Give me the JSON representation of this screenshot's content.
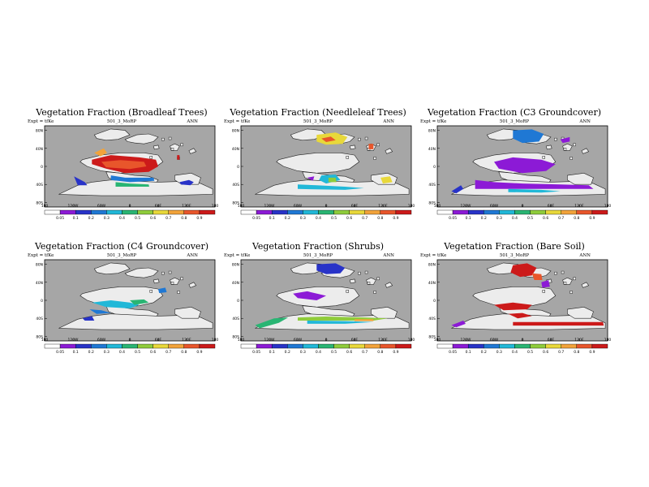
{
  "colors": {
    "ocean": "#a6a6a6",
    "land": "#ececec",
    "scale": [
      "#ffffff",
      "#8c1ad6",
      "#2833c8",
      "#1f78d4",
      "#21b8d8",
      "#29b573",
      "#8fcc3b",
      "#e8d83a",
      "#f2a33a",
      "#e8562b",
      "#cc1a1a"
    ]
  },
  "panels": [
    {
      "title": "Vegetation Fraction (Broadleaf Trees)",
      "left": "Expt = tfKe",
      "center": "501_3_MoRP",
      "right": "ANN",
      "ylabels": [
        "80N",
        "40N",
        "0",
        "40S",
        "80S"
      ],
      "xlabels": [
        "180",
        "120W",
        "60W",
        "0",
        "60E",
        "120E",
        "180"
      ],
      "cbar_labels": [
        "0.05",
        "0.1",
        "0.2",
        "0.3",
        "0.4",
        "0.5",
        "0.6",
        "0.7",
        "0.8",
        "0.9"
      ],
      "patches": [
        {
          "c": 10,
          "pts": [
            [
              -80,
              15
            ],
            [
              -40,
              25
            ],
            [
              20,
              20
            ],
            [
              55,
              15
            ],
            [
              60,
              0
            ],
            [
              40,
              -12
            ],
            [
              -10,
              -15
            ],
            [
              -50,
              -5
            ],
            [
              -80,
              5
            ]
          ]
        },
        {
          "c": 9,
          "pts": [
            [
              -60,
              10
            ],
            [
              -20,
              14
            ],
            [
              30,
              10
            ],
            [
              35,
              0
            ],
            [
              0,
              -6
            ],
            [
              -50,
              -2
            ]
          ]
        },
        {
          "c": 8,
          "pts": [
            [
              -75,
              30
            ],
            [
              -55,
              40
            ],
            [
              -48,
              30
            ],
            [
              -62,
              22
            ]
          ]
        },
        {
          "c": 3,
          "pts": [
            [
              -40,
              -20
            ],
            [
              -10,
              -25
            ],
            [
              50,
              -25
            ],
            [
              52,
              -32
            ],
            [
              0,
              -35
            ],
            [
              -40,
              -30
            ]
          ]
        },
        {
          "c": 5,
          "pts": [
            [
              -30,
              -35
            ],
            [
              0,
              -38
            ],
            [
              40,
              -40
            ],
            [
              41,
              -45
            ],
            [
              -30,
              -45
            ]
          ]
        },
        {
          "c": 2,
          "pts": [
            [
              105,
              -35
            ],
            [
              125,
              -30
            ],
            [
              135,
              -35
            ],
            [
              128,
              -42
            ],
            [
              108,
              -40
            ]
          ]
        },
        {
          "c": 10,
          "pts": [
            [
              100,
              25
            ],
            [
              105,
              25
            ],
            [
              105,
              15
            ],
            [
              100,
              15
            ]
          ]
        },
        {
          "c": 2,
          "pts": [
            [
              -118,
              -22
            ],
            [
              -95,
              -35
            ],
            [
              -90,
              -42
            ],
            [
              -110,
              -42
            ]
          ]
        }
      ]
    },
    {
      "title": "Vegetation Fraction (Needleleaf Trees)",
      "left": "Expt = tfKe",
      "center": "501_3_MoRP",
      "right": "ANN",
      "ylabels": [
        "80N",
        "40N",
        "0",
        "40S",
        "80S"
      ],
      "xlabels": [
        "180",
        "120W",
        "60W",
        "0",
        "60E",
        "120E",
        "180"
      ],
      "cbar_labels": [
        "0.05",
        "0.1",
        "0.2",
        "0.3",
        "0.4",
        "0.5",
        "0.6",
        "0.7",
        "0.8",
        "0.9"
      ],
      "patches": [
        {
          "c": 7,
          "pts": [
            [
              -20,
              70
            ],
            [
              20,
              75
            ],
            [
              45,
              65
            ],
            [
              35,
              50
            ],
            [
              0,
              48
            ],
            [
              -20,
              55
            ]
          ]
        },
        {
          "c": 9,
          "pts": [
            [
              -10,
              62
            ],
            [
              10,
              66
            ],
            [
              20,
              58
            ],
            [
              0,
              54
            ]
          ]
        },
        {
          "c": 9,
          "pts": [
            [
              90,
              50
            ],
            [
              100,
              50
            ],
            [
              100,
              38
            ],
            [
              90,
              38
            ]
          ]
        },
        {
          "c": 4,
          "pts": [
            [
              -10,
              -20
            ],
            [
              20,
              -18
            ],
            [
              30,
              -30
            ],
            [
              0,
              -38
            ],
            [
              -15,
              -30
            ]
          ]
        },
        {
          "c": 6,
          "pts": [
            [
              5,
              -25
            ],
            [
              20,
              -25
            ],
            [
              22,
              -35
            ],
            [
              5,
              -35
            ]
          ]
        },
        {
          "c": 7,
          "pts": [
            [
              115,
              -25
            ],
            [
              135,
              -22
            ],
            [
              140,
              -35
            ],
            [
              120,
              -38
            ]
          ]
        },
        {
          "c": 4,
          "pts": [
            [
              -60,
              -40
            ],
            [
              -20,
              -42
            ],
            [
              40,
              -45
            ],
            [
              80,
              -48
            ],
            [
              40,
              -52
            ],
            [
              -60,
              -50
            ]
          ]
        },
        {
          "c": 1,
          "pts": [
            [
              -40,
              -25
            ],
            [
              -25,
              -22
            ],
            [
              -28,
              -32
            ]
          ]
        }
      ]
    },
    {
      "title": "Vegetation Fraction (C3 Groundcover)",
      "left": "Expt = tfKe",
      "center": "501_3_MoRP",
      "right": "ANN",
      "ylabels": [
        "80N",
        "40N",
        "0",
        "40S",
        "80S"
      ],
      "xlabels": [
        "180",
        "120W",
        "60W",
        "0",
        "60E",
        "120E",
        "180"
      ],
      "cbar_labels": [
        "0.05",
        "0.1",
        "0.2",
        "0.3",
        "0.4",
        "0.5",
        "0.6",
        "0.7",
        "0.8",
        "0.9"
      ],
      "patches": [
        {
          "c": 3,
          "pts": [
            [
              -20,
              80
            ],
            [
              20,
              82
            ],
            [
              45,
              72
            ],
            [
              35,
              55
            ],
            [
              0,
              52
            ],
            [
              -20,
              62
            ]
          ]
        },
        {
          "c": 1,
          "pts": [
            [
              -60,
              10
            ],
            [
              -20,
              20
            ],
            [
              40,
              15
            ],
            [
              70,
              5
            ],
            [
              50,
              -10
            ],
            [
              0,
              -15
            ],
            [
              -50,
              -5
            ]
          ]
        },
        {
          "c": 1,
          "pts": [
            [
              -100,
              -30
            ],
            [
              -60,
              -35
            ],
            [
              0,
              -38
            ],
            [
              80,
              -40
            ],
            [
              140,
              -42
            ],
            [
              150,
              -50
            ],
            [
              -100,
              -50
            ]
          ]
        },
        {
          "c": 2,
          "pts": [
            [
              -150,
              -55
            ],
            [
              -130,
              -42
            ],
            [
              -125,
              -50
            ],
            [
              -140,
              -60
            ]
          ]
        },
        {
          "c": 4,
          "pts": [
            [
              -30,
              -50
            ],
            [
              40,
              -52
            ],
            [
              80,
              -55
            ],
            [
              40,
              -58
            ],
            [
              -30,
              -57
            ]
          ]
        },
        {
          "c": 1,
          "pts": [
            [
              80,
              60
            ],
            [
              100,
              65
            ],
            [
              100,
              55
            ],
            [
              85,
              52
            ]
          ]
        }
      ]
    },
    {
      "title": "Vegetation Fraction (C4 Groundcover)",
      "left": "Expt = tfKe",
      "center": "501_3_MoRP",
      "right": "ANN",
      "ylabels": [
        "80N",
        "40N",
        "0",
        "40S",
        "80S"
      ],
      "xlabels": [
        "180",
        "120W",
        "60W",
        "0",
        "60E",
        "120E",
        "180"
      ],
      "cbar_labels": [
        "0.05",
        "0.1",
        "0.2",
        "0.3",
        "0.4",
        "0.5",
        "0.6",
        "0.7",
        "0.8",
        "0.9"
      ],
      "patches": [
        {
          "c": 4,
          "pts": [
            [
              -80,
              -5
            ],
            [
              -40,
              0
            ],
            [
              0,
              -5
            ],
            [
              20,
              -10
            ],
            [
              0,
              -18
            ],
            [
              -50,
              -15
            ]
          ]
        },
        {
          "c": 3,
          "pts": [
            [
              -85,
              -20
            ],
            [
              -60,
              -22
            ],
            [
              -40,
              -28
            ],
            [
              -70,
              -30
            ]
          ]
        },
        {
          "c": 5,
          "pts": [
            [
              0,
              0
            ],
            [
              30,
              2
            ],
            [
              40,
              -5
            ],
            [
              10,
              -10
            ]
          ]
        },
        {
          "c": 2,
          "pts": [
            [
              -100,
              -40
            ],
            [
              -80,
              -35
            ],
            [
              -75,
              -45
            ],
            [
              -95,
              -45
            ]
          ]
        },
        {
          "c": 3,
          "pts": [
            [
              60,
              25
            ],
            [
              75,
              28
            ],
            [
              78,
              18
            ],
            [
              62,
              16
            ]
          ]
        }
      ]
    },
    {
      "title": "Vegetation Fraction (Shrubs)",
      "left": "Expt = tfKe",
      "center": "501_3_MoRP",
      "right": "ANN",
      "ylabels": [
        "80N",
        "40N",
        "0",
        "40S",
        "80S"
      ],
      "xlabels": [
        "180",
        "120W",
        "60W",
        "0",
        "60E",
        "120E",
        "180"
      ],
      "cbar_labels": [
        "0.05",
        "0.1",
        "0.2",
        "0.3",
        "0.4",
        "0.5",
        "0.6",
        "0.7",
        "0.8",
        "0.9"
      ],
      "patches": [
        {
          "c": 2,
          "pts": [
            [
              -20,
              80
            ],
            [
              20,
              82
            ],
            [
              40,
              72
            ],
            [
              30,
              60
            ],
            [
              0,
              58
            ],
            [
              -20,
              66
            ]
          ]
        },
        {
          "c": 1,
          "pts": [
            [
              -70,
              15
            ],
            [
              -40,
              20
            ],
            [
              0,
              10
            ],
            [
              -20,
              0
            ],
            [
              -60,
              5
            ]
          ]
        },
        {
          "c": 5,
          "pts": [
            [
              -150,
              -55
            ],
            [
              -110,
              -40
            ],
            [
              -80,
              -38
            ],
            [
              -100,
              -50
            ],
            [
              -140,
              -62
            ]
          ]
        },
        {
          "c": 6,
          "pts": [
            [
              -60,
              -38
            ],
            [
              0,
              -36
            ],
            [
              80,
              -38
            ],
            [
              130,
              -40
            ],
            [
              100,
              -45
            ],
            [
              0,
              -45
            ],
            [
              -60,
              -45
            ]
          ]
        },
        {
          "c": 4,
          "pts": [
            [
              -40,
              -45
            ],
            [
              40,
              -46
            ],
            [
              100,
              -48
            ],
            [
              40,
              -52
            ],
            [
              -40,
              -52
            ]
          ]
        },
        {
          "c": 8,
          "pts": [
            [
              60,
              -42
            ],
            [
              100,
              -42
            ],
            [
              100,
              -46
            ],
            [
              60,
              -46
            ]
          ]
        }
      ]
    },
    {
      "title": "Vegetation Fraction (Bare Soil)",
      "left": "Expt = tfKe",
      "center": "501_3_MoRP",
      "right": "ANN",
      "ylabels": [
        "80N",
        "40N",
        "0",
        "40S",
        "80S"
      ],
      "xlabels": [
        "180",
        "120W",
        "60W",
        "0",
        "60E",
        "120E",
        "180"
      ],
      "cbar_labels": [
        "0.05",
        "0.1",
        "0.2",
        "0.3",
        "0.4",
        "0.5",
        "0.6",
        "0.7",
        "0.8",
        "0.9"
      ],
      "patches": [
        {
          "c": 10,
          "pts": [
            [
              -20,
              78
            ],
            [
              10,
              82
            ],
            [
              30,
              72
            ],
            [
              20,
              55
            ],
            [
              -5,
              52
            ],
            [
              -25,
              62
            ]
          ]
        },
        {
          "c": 9,
          "pts": [
            [
              20,
              60
            ],
            [
              40,
              58
            ],
            [
              42,
              45
            ],
            [
              25,
              45
            ]
          ]
        },
        {
          "c": 10,
          "pts": [
            [
              -60,
              -10
            ],
            [
              -20,
              -5
            ],
            [
              20,
              -10
            ],
            [
              10,
              -20
            ],
            [
              -40,
              -22
            ]
          ]
        },
        {
          "c": 10,
          "pts": [
            [
              -30,
              -30
            ],
            [
              0,
              -28
            ],
            [
              20,
              -35
            ],
            [
              -10,
              -40
            ]
          ]
        },
        {
          "c": 1,
          "pts": [
            [
              -150,
              -55
            ],
            [
              -125,
              -45
            ],
            [
              -120,
              -52
            ],
            [
              -140,
              -60
            ]
          ]
        },
        {
          "c": 10,
          "pts": [
            [
              -20,
              -48
            ],
            [
              170,
              -48
            ],
            [
              172,
              -56
            ],
            [
              -20,
              -56
            ]
          ]
        },
        {
          "c": 1,
          "pts": [
            [
              40,
              40
            ],
            [
              55,
              45
            ],
            [
              58,
              30
            ],
            [
              42,
              28
            ]
          ]
        }
      ]
    }
  ]
}
